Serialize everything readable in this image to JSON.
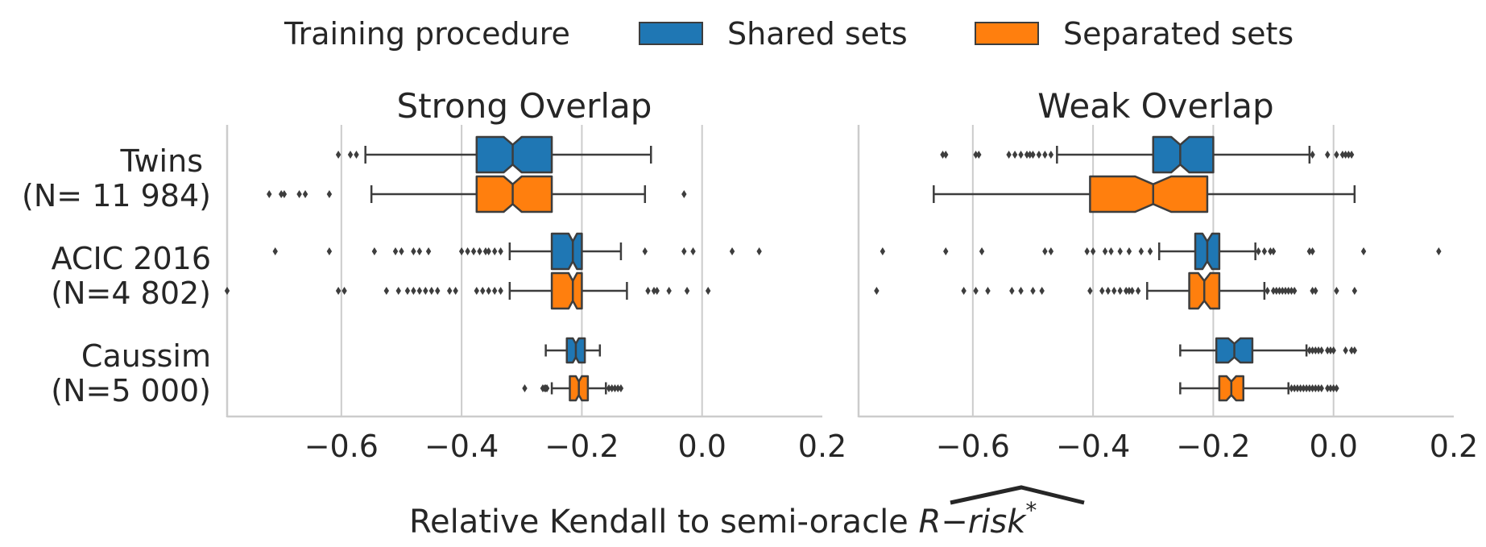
{
  "chart_data": {
    "type": "boxplot",
    "orientation": "horizontal",
    "notched": true,
    "legend": {
      "title": "Training procedure",
      "position": "top-center",
      "entries": [
        {
          "label": "Shared sets",
          "color": "#1f77b4"
        },
        {
          "label": "Separated sets",
          "color": "#ff7f0e"
        }
      ]
    },
    "xlabel": {
      "prefix": "Relative Kendall to semi-oracle ",
      "symbol": "R−risk",
      "sup": "*"
    },
    "xlim": [
      -0.79,
      0.2
    ],
    "xticks": [
      -0.6,
      -0.4,
      -0.2,
      0.0,
      0.2
    ],
    "xtick_labels": [
      "−0.6",
      "−0.4",
      "−0.2",
      "0.0",
      "0.2"
    ],
    "grid": "vertical",
    "categories": [
      {
        "line1": "Twins",
        "line2": "(N= 11 984)"
      },
      {
        "line1": "ACIC 2016",
        "line2": "(N=4 802)"
      },
      {
        "line1": "Caussim",
        "line2": "(N=5 000)"
      }
    ],
    "panels": [
      {
        "title": "Strong Overlap",
        "boxes": [
          {
            "dataset": 0,
            "series": "Shared sets",
            "whislo": -0.56,
            "q1": -0.375,
            "med": -0.315,
            "q3": -0.25,
            "whishi": -0.085,
            "notch": [
              -0.33,
              -0.3
            ],
            "fliers": [
              -0.605,
              -0.585,
              -0.575
            ]
          },
          {
            "dataset": 0,
            "series": "Separated sets",
            "whislo": -0.55,
            "q1": -0.375,
            "med": -0.315,
            "q3": -0.25,
            "whishi": -0.095,
            "notch": [
              -0.33,
              -0.3
            ],
            "fliers": [
              -0.72,
              -0.7,
              -0.695,
              -0.67,
              -0.66,
              -0.62,
              -0.03
            ]
          },
          {
            "dataset": 1,
            "series": "Shared sets",
            "whislo": -0.32,
            "q1": -0.25,
            "med": -0.215,
            "q3": -0.2,
            "whishi": -0.135,
            "notch": [
              -0.222,
              -0.208
            ],
            "fliers": [
              -0.71,
              -0.62,
              -0.545,
              -0.51,
              -0.5,
              -0.48,
              -0.47,
              -0.455,
              -0.4,
              -0.39,
              -0.38,
              -0.37,
              -0.36,
              -0.355,
              -0.345,
              -0.335,
              -0.095,
              -0.03,
              -0.015,
              0.05,
              0.095
            ]
          },
          {
            "dataset": 1,
            "series": "Separated sets",
            "whislo": -0.32,
            "q1": -0.25,
            "med": -0.215,
            "q3": -0.2,
            "whishi": -0.125,
            "notch": [
              -0.222,
              -0.208
            ],
            "fliers": [
              -0.79,
              -0.605,
              -0.595,
              -0.525,
              -0.505,
              -0.49,
              -0.48,
              -0.47,
              -0.46,
              -0.45,
              -0.44,
              -0.42,
              -0.41,
              -0.375,
              -0.365,
              -0.355,
              -0.345,
              -0.335,
              -0.09,
              -0.08,
              -0.075,
              -0.055,
              -0.025,
              0.01
            ]
          },
          {
            "dataset": 2,
            "series": "Shared sets",
            "whislo": -0.26,
            "q1": -0.225,
            "med": -0.21,
            "q3": -0.195,
            "whishi": -0.17,
            "notch": [
              -0.215,
              -0.205
            ],
            "fliers": []
          },
          {
            "dataset": 2,
            "series": "Separated sets",
            "whislo": -0.25,
            "q1": -0.22,
            "med": -0.205,
            "q3": -0.19,
            "whishi": -0.16,
            "notch": [
              -0.21,
              -0.2
            ],
            "fliers": [
              -0.295,
              -0.265,
              -0.262,
              -0.26,
              -0.258,
              -0.155,
              -0.15,
              -0.145,
              -0.14,
              -0.135
            ]
          }
        ]
      },
      {
        "title": "Weak Overlap",
        "boxes": [
          {
            "dataset": 0,
            "series": "Shared sets",
            "whislo": -0.46,
            "q1": -0.3,
            "med": -0.255,
            "q3": -0.2,
            "whishi": -0.04,
            "notch": [
              -0.27,
              -0.24
            ],
            "fliers": [
              -0.65,
              -0.645,
              -0.595,
              -0.59,
              -0.54,
              -0.53,
              -0.52,
              -0.51,
              -0.505,
              -0.5,
              -0.49,
              -0.48,
              -0.47,
              -0.035,
              -0.01,
              0.005,
              0.015,
              0.02,
              0.025,
              0.03
            ]
          },
          {
            "dataset": 0,
            "series": "Separated sets",
            "whislo": -0.665,
            "q1": -0.405,
            "med": -0.3,
            "q3": -0.21,
            "whishi": 0.035,
            "notch": [
              -0.33,
              -0.27
            ],
            "fliers": []
          },
          {
            "dataset": 1,
            "series": "Shared sets",
            "whislo": -0.29,
            "q1": -0.23,
            "med": -0.21,
            "q3": -0.19,
            "whishi": -0.13,
            "notch": [
              -0.218,
              -0.202
            ],
            "fliers": [
              -0.75,
              -0.645,
              -0.585,
              -0.48,
              -0.47,
              -0.41,
              -0.4,
              -0.38,
              -0.37,
              -0.355,
              -0.34,
              -0.32,
              -0.305,
              -0.125,
              -0.115,
              -0.105,
              -0.1,
              -0.04,
              -0.035,
              0.05,
              0.175
            ]
          },
          {
            "dataset": 1,
            "series": "Separated sets",
            "whislo": -0.31,
            "q1": -0.24,
            "med": -0.215,
            "q3": -0.19,
            "whishi": -0.115,
            "notch": [
              -0.225,
              -0.205
            ],
            "fliers": [
              -0.76,
              -0.615,
              -0.595,
              -0.575,
              -0.535,
              -0.52,
              -0.5,
              -0.485,
              -0.405,
              -0.385,
              -0.375,
              -0.365,
              -0.355,
              -0.345,
              -0.34,
              -0.335,
              -0.325,
              -0.11,
              -0.1,
              -0.095,
              -0.09,
              -0.085,
              -0.08,
              -0.075,
              -0.07,
              -0.065,
              -0.035,
              -0.03,
              0.005,
              0.035
            ]
          },
          {
            "dataset": 2,
            "series": "Shared sets",
            "whislo": -0.255,
            "q1": -0.195,
            "med": -0.165,
            "q3": -0.135,
            "whishi": -0.045,
            "notch": [
              -0.175,
              -0.155
            ],
            "fliers": [
              -0.04,
              -0.035,
              -0.03,
              -0.025,
              -0.02,
              -0.01,
              -0.005,
              0.0,
              0.02,
              0.03,
              0.035
            ]
          },
          {
            "dataset": 2,
            "series": "Separated sets",
            "whislo": -0.255,
            "q1": -0.19,
            "med": -0.17,
            "q3": -0.15,
            "whishi": -0.075,
            "notch": [
              -0.178,
              -0.162
            ],
            "fliers": [
              -0.07,
              -0.065,
              -0.06,
              -0.055,
              -0.05,
              -0.045,
              -0.04,
              -0.035,
              -0.03,
              -0.025,
              -0.02,
              -0.01,
              -0.005,
              0.0,
              0.005
            ]
          }
        ]
      }
    ]
  }
}
